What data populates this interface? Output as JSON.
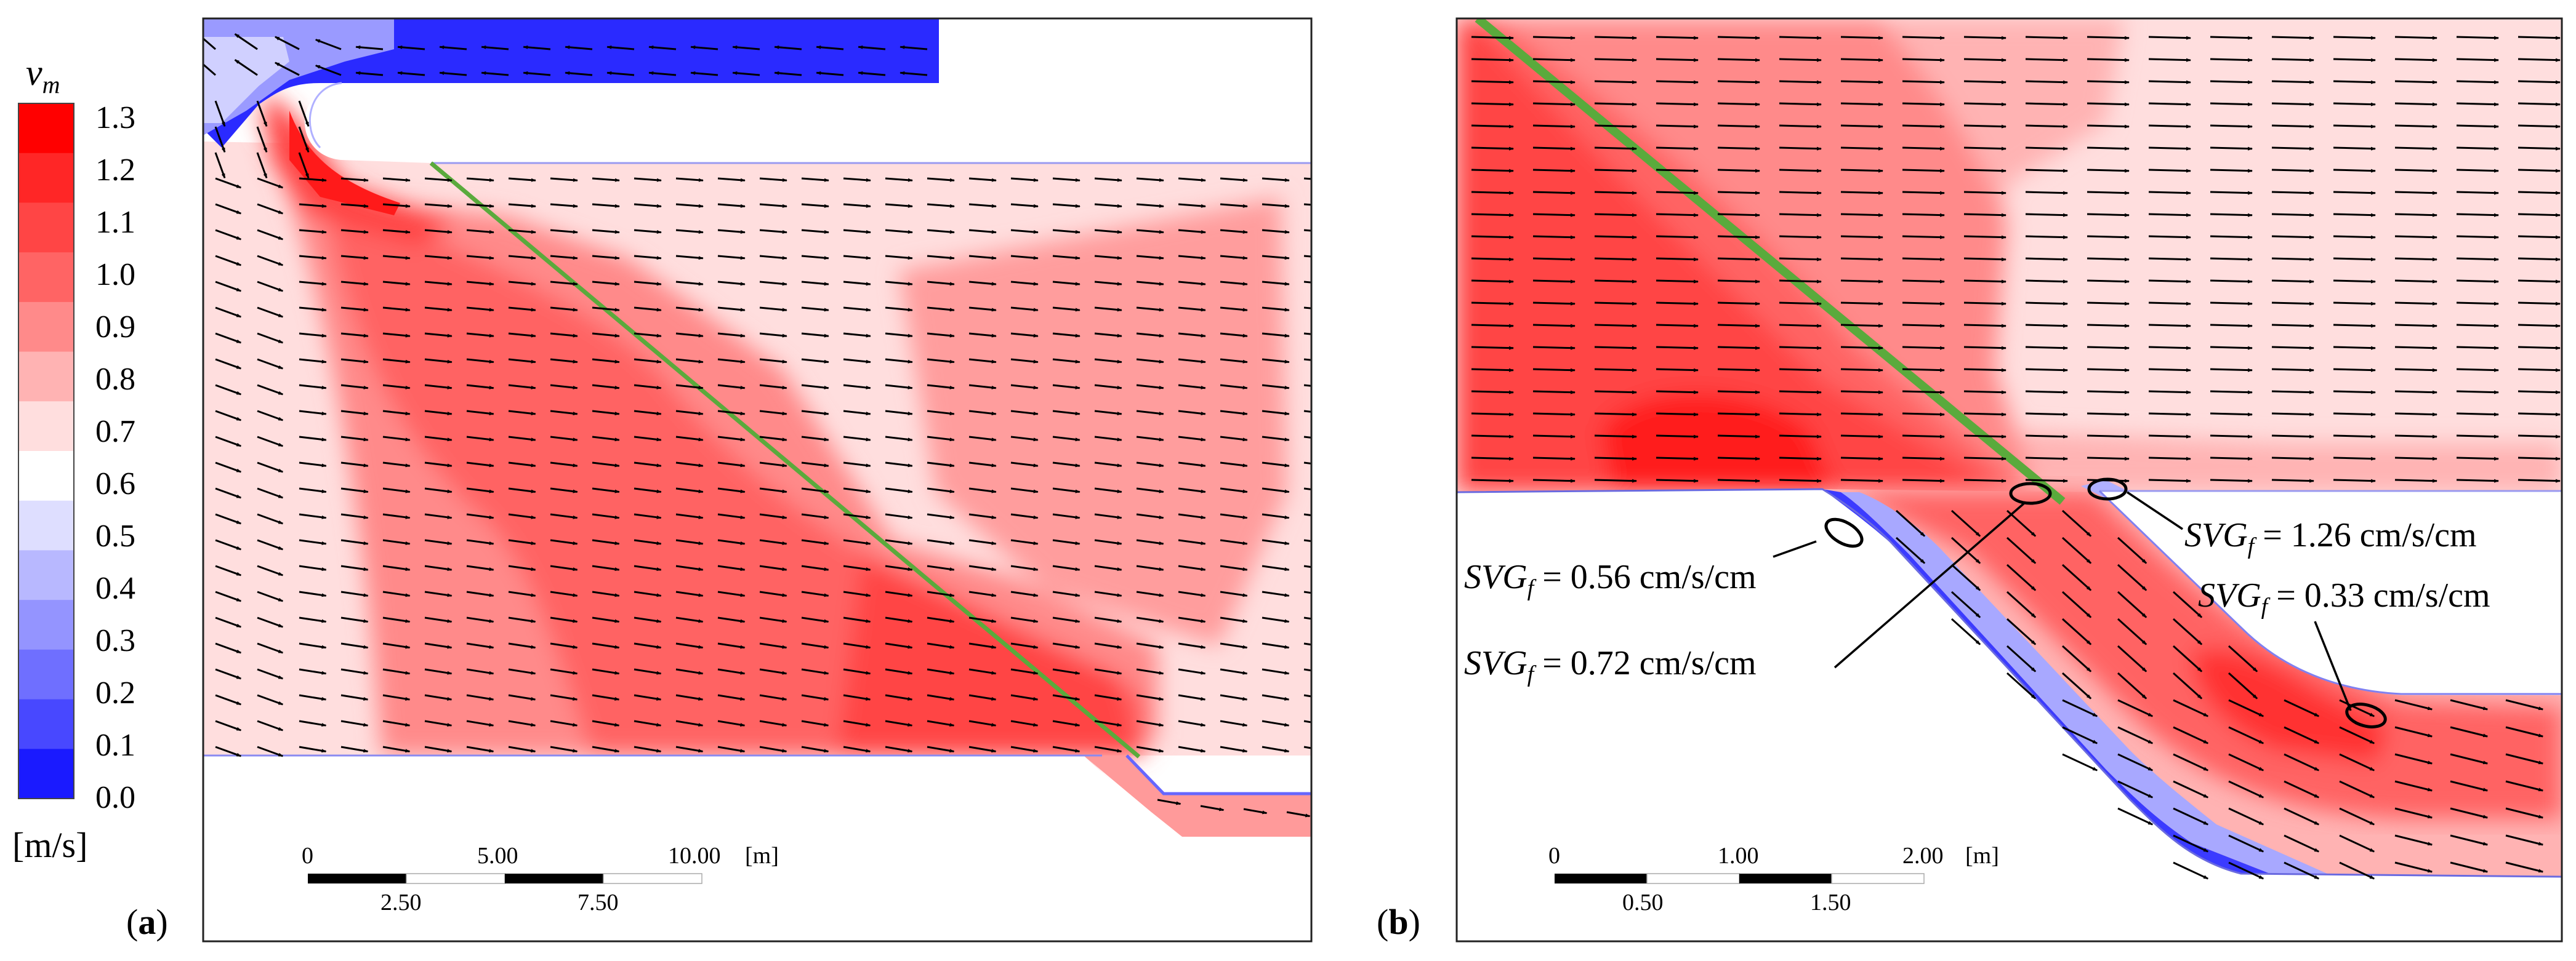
{
  "colorbar": {
    "symbol": "v",
    "symbol_sub": "m",
    "units": "[m/s]",
    "levels": [
      "1.3",
      "1.2",
      "1.1",
      "1.0",
      "0.9",
      "0.8",
      "0.7",
      "0.6",
      "0.5",
      "0.4",
      "0.3",
      "0.2",
      "0.1",
      "0.0"
    ],
    "colors": [
      "#ff0000",
      "#ff2626",
      "#ff4545",
      "#ff6464",
      "#ff8a8a",
      "#ffb3b3",
      "#ffdede",
      "#ffffff",
      "#dedeff",
      "#b8b8ff",
      "#9494ff",
      "#6f6fff",
      "#4848ff",
      "#1a1aff"
    ]
  },
  "panel_a": {
    "tag": "a",
    "scale": {
      "unit": "[m]",
      "top_ticks": [
        "0",
        "5.00",
        "10.00"
      ],
      "bottom_ticks": [
        "2.50",
        "7.50"
      ]
    }
  },
  "panel_b": {
    "tag": "b",
    "scale": {
      "unit": "[m]",
      "top_ticks": [
        "0",
        "1.00",
        "2.00"
      ],
      "bottom_ticks": [
        "0.50",
        "1.50"
      ]
    },
    "annotations": [
      {
        "symbol": "SVG",
        "sub": "f",
        "text": "= 1.26 cm/s/cm"
      },
      {
        "symbol": "SVG",
        "sub": "f",
        "text": "= 0.56 cm/s/cm"
      },
      {
        "symbol": "SVG",
        "sub": "f",
        "text": "= 0.33 cm/s/cm"
      },
      {
        "symbol": "SVG",
        "sub": "f",
        "text": "= 0.72 cm/s/cm"
      }
    ]
  },
  "style": {
    "red": "#ff0000",
    "blue": "#0000ff",
    "baffle": "#5aaa3c"
  }
}
